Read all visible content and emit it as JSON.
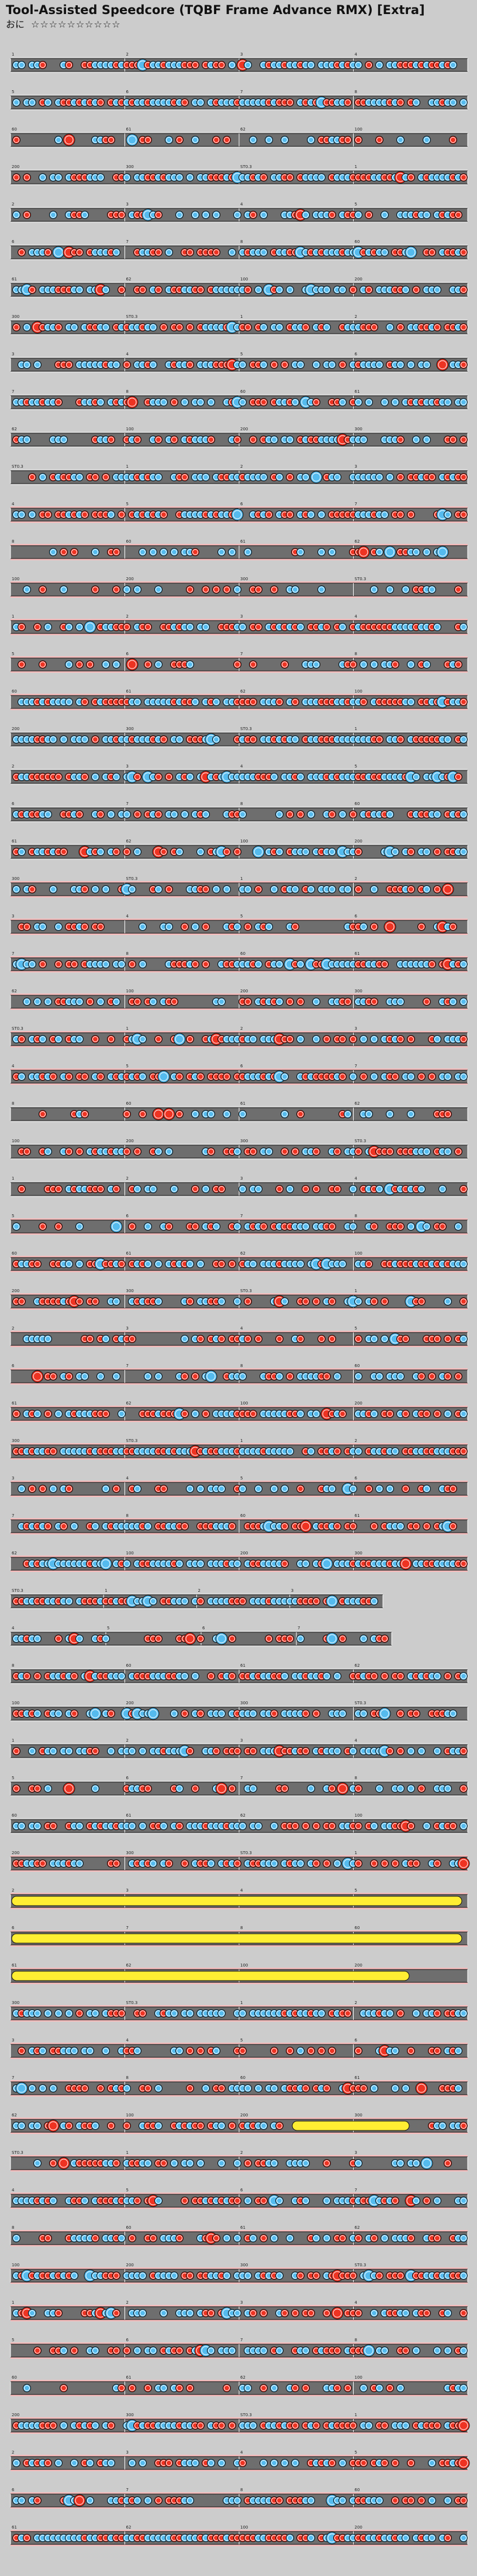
{
  "title": "Tool-Assisted Speedcore (TQBF Frame Advance RMX) [Extra]",
  "difficulty_label": "おに",
  "stars": "☆☆☆☆☆☆☆☆☆☆",
  "colors": {
    "background": "#cccccc",
    "lane": "#6e6e6e",
    "lane_gogo": "#f6bdbd",
    "rim": "#111111",
    "beat_line": "#ffffff",
    "don": "#ee3322",
    "ka": "#55bbee",
    "drumroll": "#ffee33",
    "measure_label": "#222222",
    "bpm_label": "#2222cc",
    "hs_label": "#cc2222"
  },
  "sample_labels": [
    "1",
    "2",
    "3",
    "4",
    "5",
    "6",
    "7",
    "8",
    "60",
    "61",
    "62",
    "100",
    "200",
    "300",
    "ST0.3"
  ]
}
